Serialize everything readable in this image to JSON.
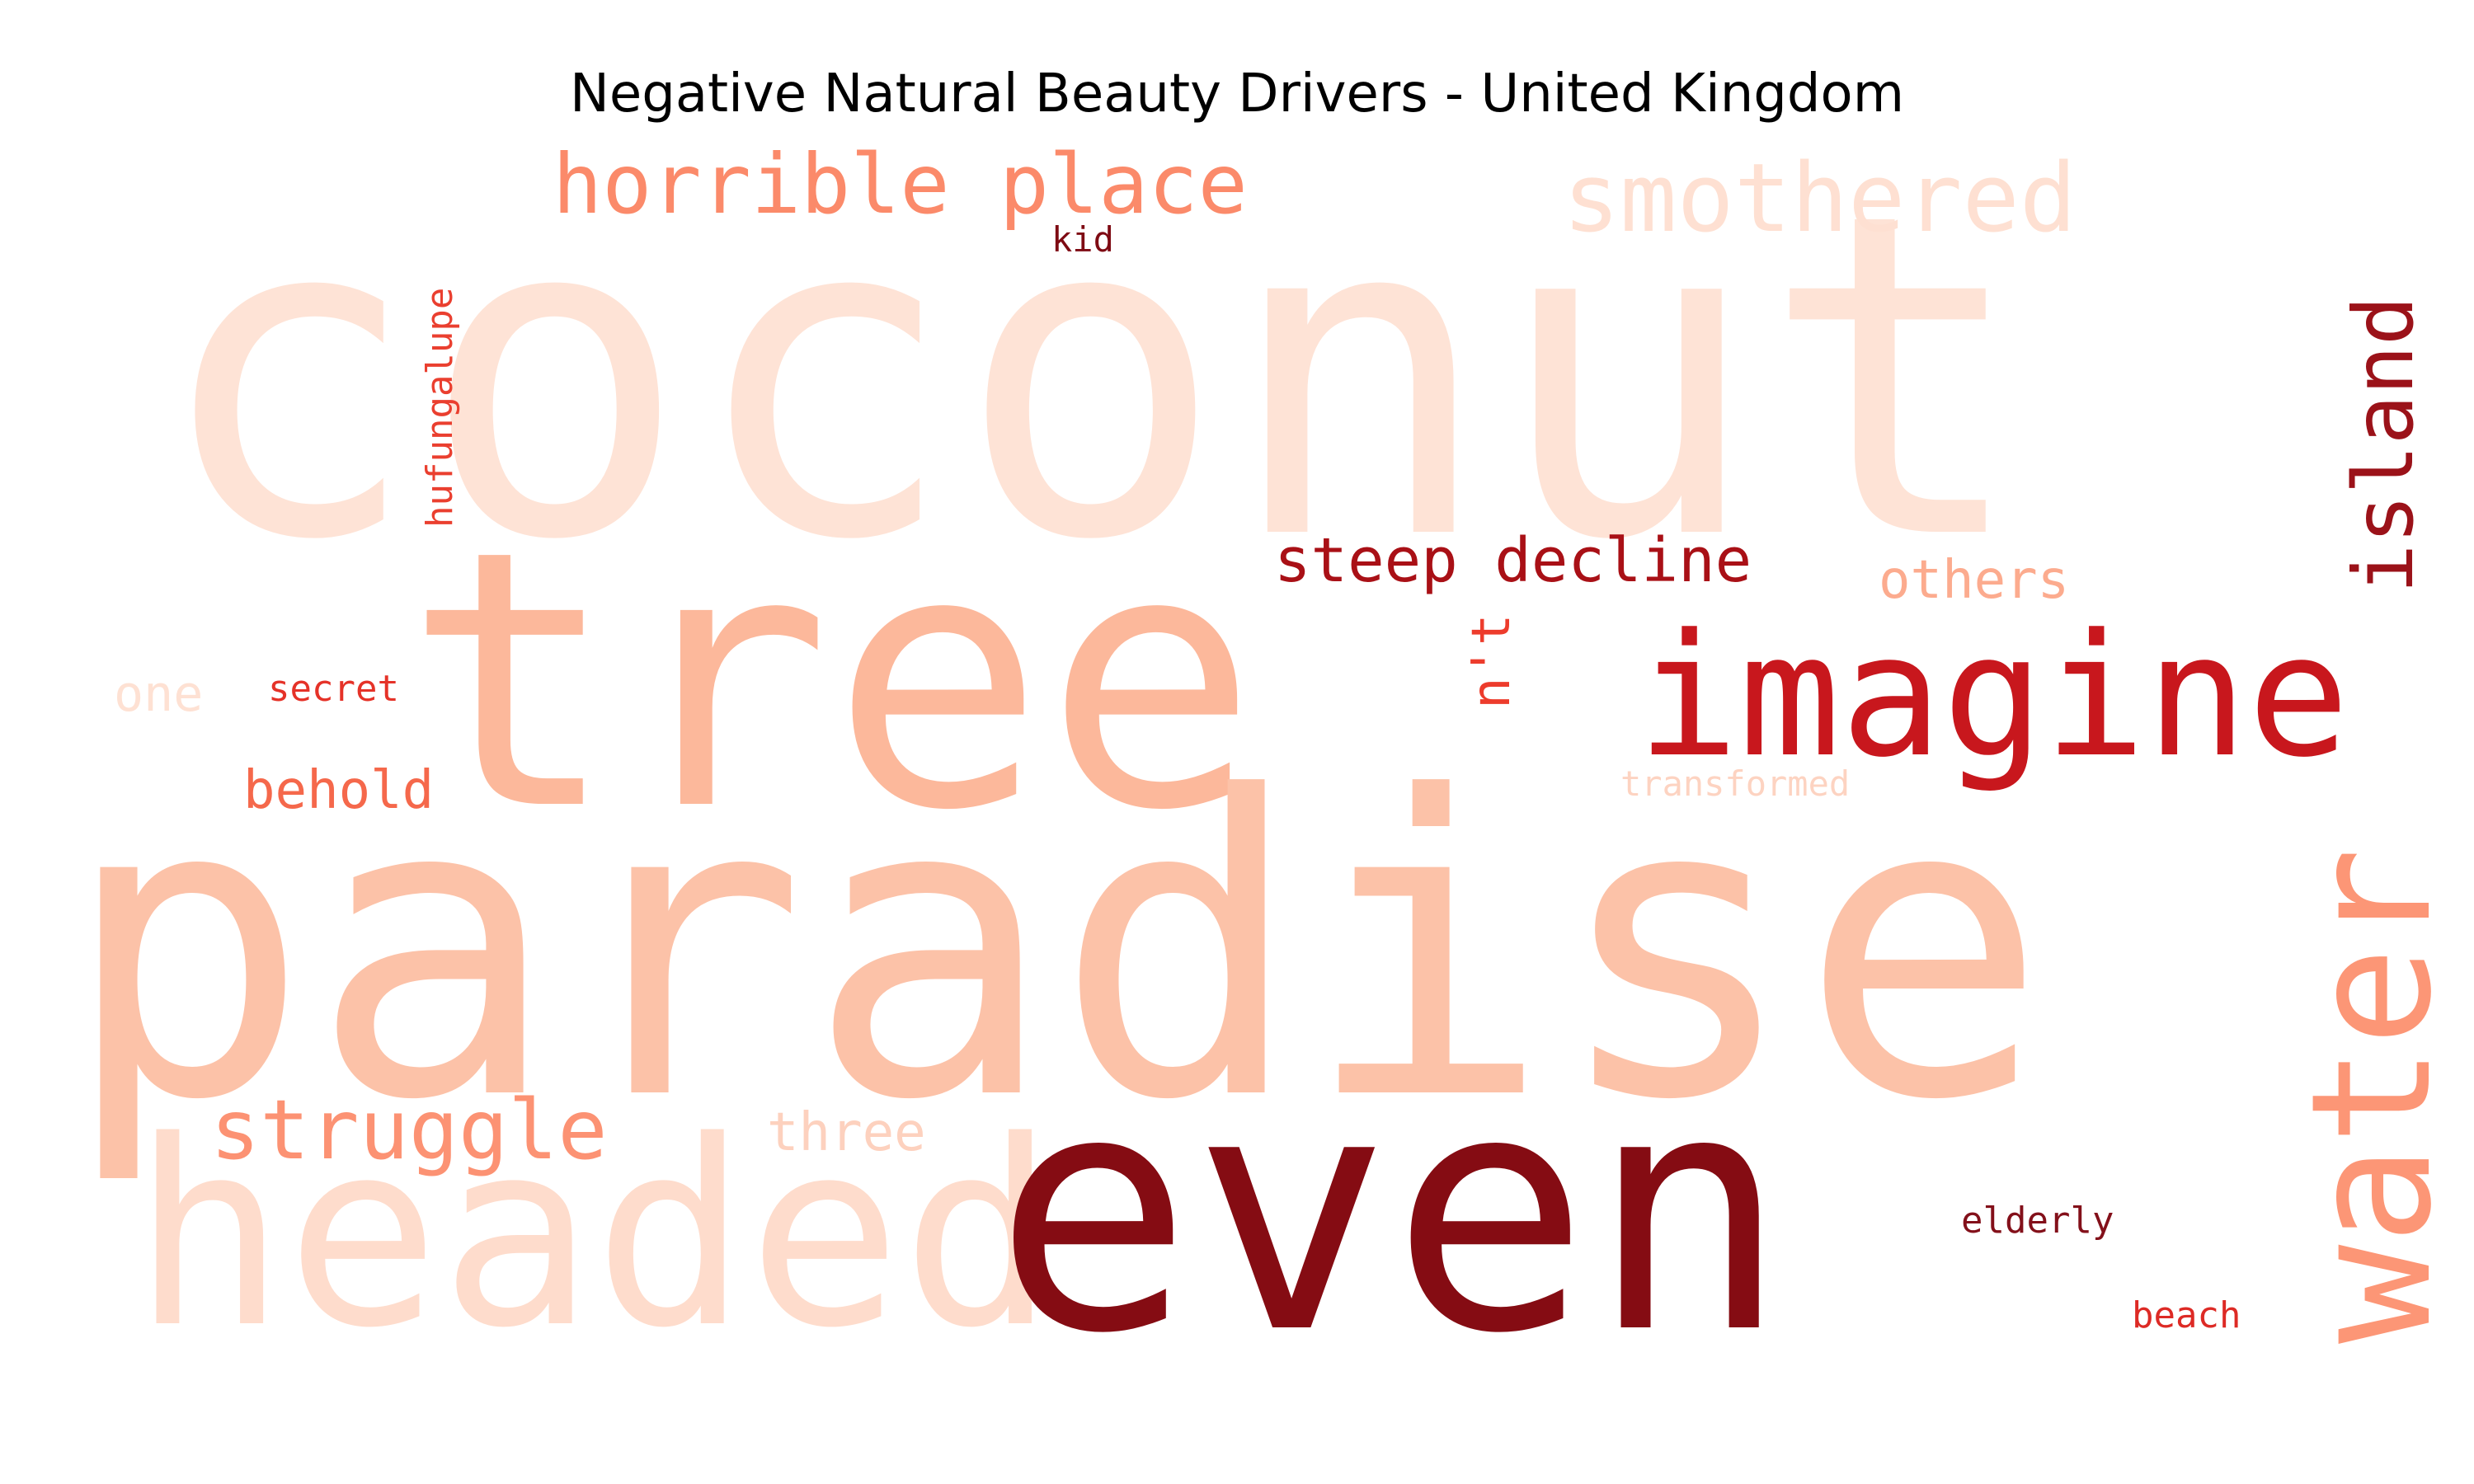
{
  "title": "Negative Natural Beauty Drivers - United Kingdom",
  "words": [
    {
      "text": "coconut",
      "color": "#fee3d6"
    },
    {
      "text": "tree",
      "color": "#fcb89b"
    },
    {
      "text": "paradise",
      "color": "#fcc2a8"
    },
    {
      "text": "even",
      "color": "#850c13"
    },
    {
      "text": "imagine",
      "color": "#c8171d"
    },
    {
      "text": "water",
      "color": "#fc9676"
    },
    {
      "text": "headed",
      "color": "#fedccc"
    },
    {
      "text": "horrible place",
      "color": "#fb8a6a"
    },
    {
      "text": "smothered",
      "color": "#fee0d2"
    },
    {
      "text": "island",
      "color": "#9b1219"
    },
    {
      "text": "steep decline",
      "color": "#a91016"
    },
    {
      "text": "struggle",
      "color": "#fc9273"
    },
    {
      "text": "others",
      "color": "#fcab8e"
    },
    {
      "text": "behold",
      "color": "#f5684b"
    },
    {
      "text": "n't",
      "color": "#ed3c2c"
    },
    {
      "text": "three",
      "color": "#fdd1be"
    },
    {
      "text": "one",
      "color": "#fee1d3"
    },
    {
      "text": "secret",
      "color": "#e53228"
    },
    {
      "text": "transformed",
      "color": "#fdd3c1"
    },
    {
      "text": "hufungalupe",
      "color": "#ea3f2f"
    },
    {
      "text": "kid",
      "color": "#7e0a13"
    },
    {
      "text": "elderly",
      "color": "#83101a"
    },
    {
      "text": "beach",
      "color": "#dd2a25"
    }
  ]
}
